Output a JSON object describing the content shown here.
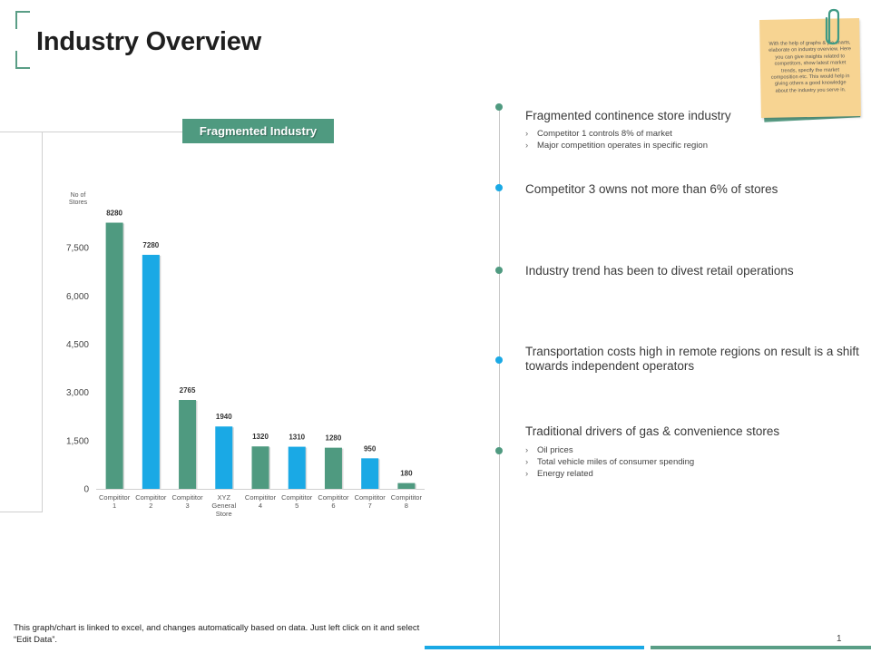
{
  "page": {
    "title": "Industry Overview",
    "page_number": "1"
  },
  "chart_label": "Fragmented Industry",
  "chart_data": {
    "type": "bar",
    "ytitle": [
      "No of",
      "Stores"
    ],
    "categories": [
      [
        "Compititor",
        "1"
      ],
      [
        "Compititor",
        "2"
      ],
      [
        "Compititor",
        "3"
      ],
      [
        "XYZ",
        "General",
        "Store"
      ],
      [
        "Compititor",
        "4"
      ],
      [
        "Compititor",
        "5"
      ],
      [
        "Compititor",
        "6"
      ],
      [
        "Compititor",
        "7"
      ],
      [
        "Compititor",
        "8"
      ]
    ],
    "values": [
      8280,
      7280,
      2765,
      1940,
      1320,
      1310,
      1280,
      950,
      180
    ],
    "bar_colors": [
      "#4f9a80",
      "#1aa9e5",
      "#4f9a80",
      "#1aa9e5",
      "#4f9a80",
      "#1aa9e5",
      "#4f9a80",
      "#1aa9e5",
      "#4f9a80"
    ],
    "yticks": [
      0,
      1500,
      3000,
      4500,
      6000,
      7500
    ],
    "ytick_labels": [
      "0",
      "1,500",
      "3,000",
      "4,500",
      "6,000",
      "7,500"
    ],
    "ylim": [
      0,
      9000
    ]
  },
  "sticky_note": {
    "text": "With the help of graphs & pie charts, elaborate on industry overview. Here you can give insights related to competitors, show latest market trends, specify the market composition etc. This would help in giving others a good knowledge about the industry you serve in."
  },
  "timeline": [
    {
      "heading": "Fragmented continence store industry",
      "bullets": [
        "Competitor  1 controls 8% of market",
        "Major  competition  operates in specific region"
      ]
    },
    {
      "heading": "Competitor 3 owns not more than  6% of stores",
      "bullets": []
    },
    {
      "heading": "Industry trend has been to divest retail operations",
      "bullets": []
    },
    {
      "heading": "Transportation costs high in remote regions on result is a shift towards independent operators",
      "bullets": []
    },
    {
      "heading": "Traditional drivers of gas & convenience stores",
      "bullets": [
        "Oil prices",
        "Total vehicle miles  of consumer spending",
        "Energy  related"
      ]
    }
  ],
  "colors": {
    "green": "#4f9a80",
    "blue": "#1aa9e5"
  },
  "footnote": "This graph/chart is linked to excel, and changes automatically based on data. Just left click on it and select “Edit Data”."
}
